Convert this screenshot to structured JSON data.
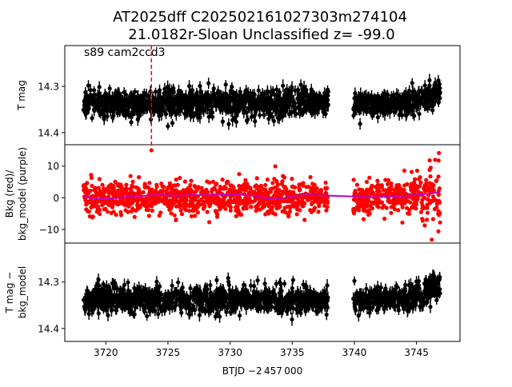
{
  "chart_data": {
    "type": "scatter",
    "title_line1": "AT2025dff  C202502161027303m274104",
    "title_line2": "21.0182r-Sloan Unclassified z= -99.0",
    "annotation": "s89 cam2ccd3",
    "xlabel": "BTJD −2 457 000",
    "xlim": [
      3716.7,
      3748.5
    ],
    "xticks": [
      3720,
      3725,
      3730,
      3735,
      3740,
      3745
    ],
    "marker_time": 3723.67,
    "segments": [
      [
        3718.2,
        3737.9
      ],
      [
        3739.9,
        3746.9
      ]
    ],
    "panels": [
      {
        "name": "tmag",
        "ylabel": [
          "T mag"
        ],
        "ylim": [
          14.426,
          14.212
        ],
        "yticks": [
          14.3,
          14.4
        ],
        "ytick_labels": [
          "14.3",
          "14.4"
        ],
        "color": "#000000",
        "mean": 14.337,
        "scatter": 0.014,
        "errorbar": 0.011,
        "end_brightening": -0.025
      },
      {
        "name": "bkg",
        "ylabel": [
          "Bkg (red)/",
          "bkg_model (purple)"
        ],
        "ylim": [
          -14.3,
          16.75
        ],
        "yticks": [
          -10,
          0,
          10
        ],
        "ytick_labels": [
          "−10",
          "0",
          "10"
        ],
        "color": "#ff0000",
        "model_color": "#bf00bf",
        "mean": 0,
        "scatter": 2.6,
        "end_spread": 3.5,
        "marker_point": 15.0,
        "model": [
          [
            3718.2,
            0.5
          ],
          [
            3719,
            -0.3
          ],
          [
            3720,
            -0.2
          ],
          [
            3721,
            0
          ],
          [
            3722,
            0.5
          ],
          [
            3723,
            0.6
          ],
          [
            3724,
            0.9
          ],
          [
            3725,
            0.8
          ],
          [
            3726,
            0.7
          ],
          [
            3727,
            0.9
          ],
          [
            3728,
            0.8
          ],
          [
            3729,
            1.0
          ],
          [
            3730,
            1.2
          ],
          [
            3731,
            0.9
          ],
          [
            3732,
            0.6
          ],
          [
            3733,
            -0.2
          ],
          [
            3734,
            -0.4
          ],
          [
            3735,
            0.5
          ],
          [
            3736,
            0.9
          ],
          [
            3737,
            0.8
          ],
          [
            3737.9,
            0.7
          ],
          [
            3739.9,
            0.4
          ],
          [
            3741,
            0.2
          ],
          [
            3742,
            0.3
          ],
          [
            3743,
            0.4
          ],
          [
            3744,
            0.6
          ],
          [
            3745,
            0.9
          ],
          [
            3746,
            1.3
          ],
          [
            3746.9,
            1.8
          ]
        ]
      },
      {
        "name": "tmag_minus_bkg",
        "ylabel": [
          "T mag −",
          "bkg_model"
        ],
        "ylim": [
          14.428,
          14.216
        ],
        "yticks": [
          14.3,
          14.4
        ],
        "ytick_labels": [
          "14.3",
          "14.4"
        ],
        "color": "#000000",
        "mean": 14.338,
        "scatter": 0.014,
        "errorbar": 0.011,
        "end_brightening": -0.03
      }
    ]
  }
}
